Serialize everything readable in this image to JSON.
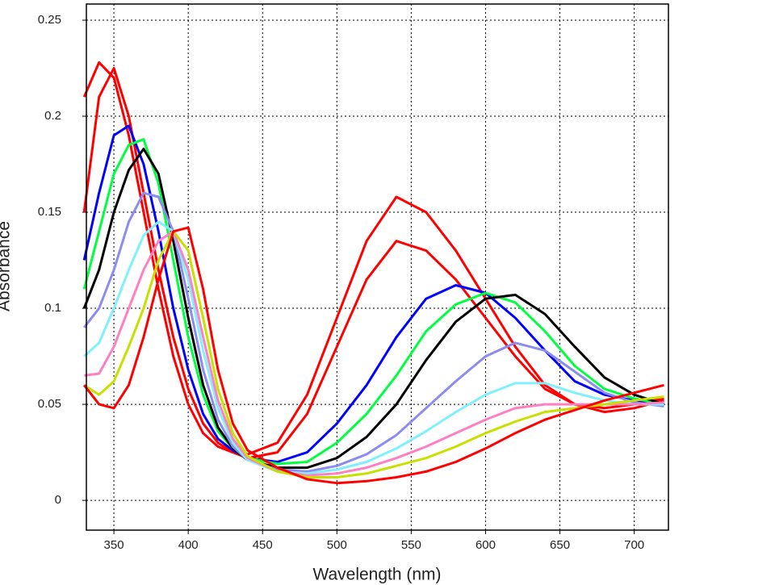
{
  "chart_data": {
    "type": "line",
    "x_label": "Wavelength (nm)",
    "y_label": "Absorbance",
    "x": [
      330,
      340,
      350,
      360,
      370,
      380,
      390,
      400,
      410,
      420,
      430,
      440,
      460,
      480,
      500,
      520,
      540,
      560,
      580,
      600,
      620,
      640,
      660,
      680,
      700,
      720
    ],
    "series": [
      {
        "color": "#ff0000",
        "values": [
          0.21,
          0.228,
          0.22,
          0.19,
          0.15,
          0.11,
          0.075,
          0.05,
          0.035,
          0.028,
          0.025,
          0.024,
          0.03,
          0.055,
          0.095,
          0.135,
          0.158,
          0.15,
          0.13,
          0.105,
          0.08,
          0.06,
          0.05,
          0.046,
          0.048,
          0.052
        ]
      },
      {
        "color": "#ff0000",
        "values": [
          0.15,
          0.21,
          0.225,
          0.2,
          0.16,
          0.12,
          0.085,
          0.058,
          0.04,
          0.03,
          0.025,
          0.022,
          0.025,
          0.045,
          0.08,
          0.115,
          0.135,
          0.13,
          0.115,
          0.095,
          0.075,
          0.058,
          0.05,
          0.048,
          0.05,
          0.053
        ]
      },
      {
        "color": "#0000ff",
        "values": [
          0.125,
          0.16,
          0.19,
          0.195,
          0.175,
          0.14,
          0.1,
          0.068,
          0.045,
          0.032,
          0.026,
          0.022,
          0.02,
          0.025,
          0.04,
          0.06,
          0.085,
          0.105,
          0.112,
          0.108,
          0.095,
          0.078,
          0.062,
          0.055,
          0.052,
          0.05
        ]
      },
      {
        "color": "#00ff40",
        "values": [
          0.11,
          0.14,
          0.17,
          0.185,
          0.188,
          0.165,
          0.125,
          0.085,
          0.055,
          0.036,
          0.027,
          0.022,
          0.019,
          0.02,
          0.03,
          0.045,
          0.065,
          0.088,
          0.102,
          0.108,
          0.103,
          0.088,
          0.07,
          0.058,
          0.053,
          0.05
        ]
      },
      {
        "color": "#000000",
        "values": [
          0.1,
          0.12,
          0.15,
          0.172,
          0.183,
          0.17,
          0.135,
          0.095,
          0.06,
          0.038,
          0.027,
          0.021,
          0.017,
          0.017,
          0.022,
          0.033,
          0.05,
          0.073,
          0.093,
          0.105,
          0.107,
          0.097,
          0.08,
          0.064,
          0.055,
          0.05
        ]
      },
      {
        "color": "#8c8cf0",
        "values": [
          0.09,
          0.1,
          0.12,
          0.145,
          0.16,
          0.158,
          0.14,
          0.105,
          0.068,
          0.042,
          0.028,
          0.021,
          0.016,
          0.015,
          0.018,
          0.024,
          0.034,
          0.048,
          0.062,
          0.075,
          0.082,
          0.078,
          0.067,
          0.056,
          0.051,
          0.049
        ]
      },
      {
        "color": "#80f0ff",
        "values": [
          0.075,
          0.082,
          0.1,
          0.12,
          0.138,
          0.145,
          0.14,
          0.115,
          0.078,
          0.048,
          0.03,
          0.021,
          0.015,
          0.014,
          0.016,
          0.02,
          0.027,
          0.036,
          0.046,
          0.055,
          0.061,
          0.061,
          0.056,
          0.052,
          0.05,
          0.05
        ]
      },
      {
        "color": "#ff80c0",
        "values": [
          0.065,
          0.066,
          0.08,
          0.1,
          0.12,
          0.135,
          0.14,
          0.12,
          0.085,
          0.052,
          0.032,
          0.022,
          0.015,
          0.013,
          0.014,
          0.017,
          0.022,
          0.028,
          0.035,
          0.042,
          0.048,
          0.05,
          0.05,
          0.05,
          0.05,
          0.051
        ]
      },
      {
        "color": "#c8e000",
        "values": [
          0.06,
          0.055,
          0.062,
          0.08,
          0.1,
          0.125,
          0.14,
          0.13,
          0.095,
          0.058,
          0.035,
          0.023,
          0.015,
          0.012,
          0.012,
          0.014,
          0.018,
          0.022,
          0.028,
          0.035,
          0.041,
          0.046,
          0.048,
          0.05,
          0.052,
          0.054
        ]
      },
      {
        "color": "#ff0000",
        "values": [
          0.06,
          0.05,
          0.048,
          0.06,
          0.085,
          0.115,
          0.14,
          0.142,
          0.11,
          0.068,
          0.04,
          0.026,
          0.017,
          0.011,
          0.009,
          0.01,
          0.012,
          0.015,
          0.02,
          0.027,
          0.035,
          0.042,
          0.047,
          0.052,
          0.056,
          0.06
        ]
      }
    ],
    "xlim": [
      331.5,
      723
    ],
    "ylim": [
      -0.0155,
      0.2584
    ],
    "xticks": [
      350,
      400,
      450,
      500,
      550,
      600,
      650,
      700
    ],
    "yticks": [
      0,
      0.05,
      0.1,
      0.15,
      0.2,
      0.25
    ],
    "grid": true
  }
}
